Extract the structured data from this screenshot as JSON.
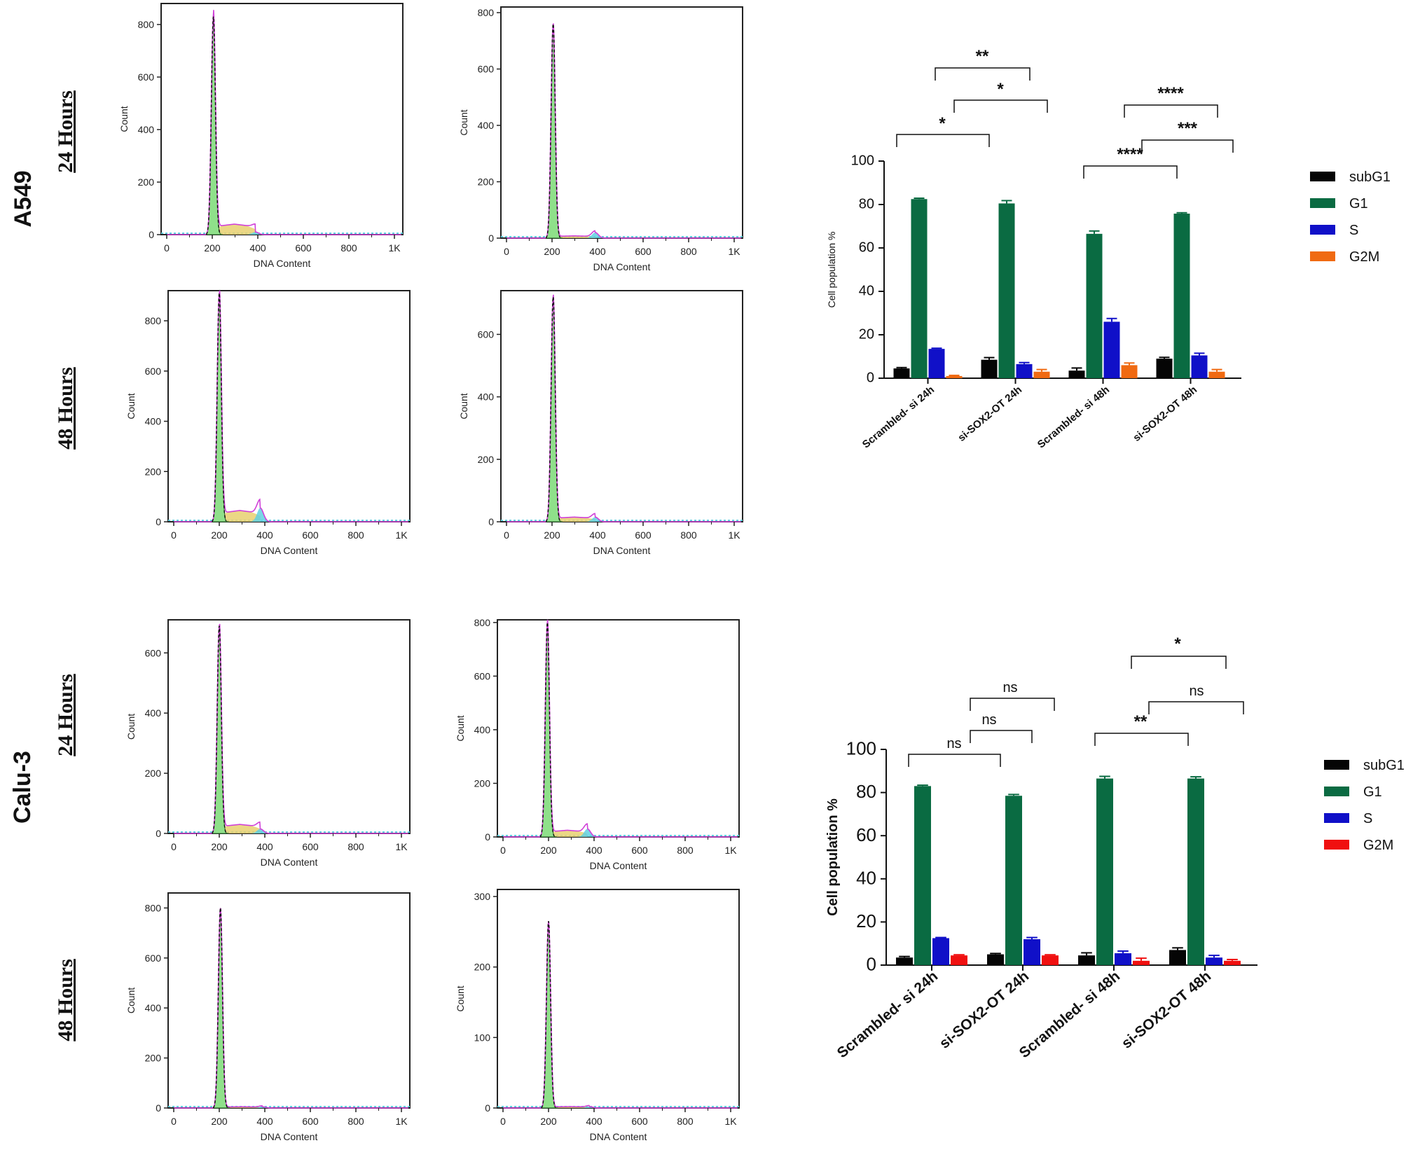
{
  "colors": {
    "subG1": "#050505",
    "G1": "#0a6b42",
    "S": "#1010c8",
    "G2M_A549": "#f06a12",
    "G2M_Calu3": "#f01010",
    "hist_fill": "#8fe08a",
    "hist_line": "#d040d8",
    "hist_yellow": "#e8d070",
    "hist_cyan": "#60d0e0"
  },
  "row_labels": {
    "a549": "A549",
    "calu3": "Calu-3",
    "h24": "24 Hours",
    "h48": "48 Hours"
  },
  "histograms": [
    {
      "id": "a549-24h-scr",
      "xlabel": "DNA Content",
      "ylabel": "Count",
      "xticks": [
        "0",
        "200",
        "400",
        "600",
        "800",
        "1K"
      ],
      "yticks": [
        "0",
        "200",
        "400",
        "600",
        "800"
      ],
      "ymax": 880,
      "peak": 830,
      "peak_x": 205,
      "s_level": 40,
      "g2_bump": 10
    },
    {
      "id": "a549-24h-si",
      "xlabel": "DNA Content",
      "ylabel": "Count",
      "xticks": [
        "0",
        "200",
        "400",
        "600",
        "800",
        "1K"
      ],
      "yticks": [
        "0",
        "200",
        "400",
        "600",
        "800"
      ],
      "ymax": 820,
      "peak": 760,
      "peak_x": 205,
      "s_level": 8,
      "g2_bump": 20
    },
    {
      "id": "a549-48h-scr",
      "xlabel": "DNA Content",
      "ylabel": "Count",
      "xticks": [
        "0",
        "200",
        "400",
        "600",
        "800",
        "1K"
      ],
      "yticks": [
        "0",
        "200",
        "400",
        "600",
        "800"
      ],
      "ymax": 920,
      "peak": 910,
      "peak_x": 200,
      "s_level": 45,
      "g2_bump": 55
    },
    {
      "id": "a549-48h-si",
      "xlabel": "DNA Content",
      "ylabel": "Count",
      "xticks": [
        "0",
        "200",
        "400",
        "600",
        "800",
        "1K"
      ],
      "yticks": [
        "0",
        "200",
        "400",
        "600"
      ],
      "ymax": 740,
      "peak": 720,
      "peak_x": 205,
      "s_level": 15,
      "g2_bump": 15
    },
    {
      "id": "calu3-24h-scr",
      "xlabel": "DNA Content",
      "ylabel": "Count",
      "xticks": [
        "0",
        "200",
        "400",
        "600",
        "800",
        "1K"
      ],
      "yticks": [
        "0",
        "200",
        "400",
        "600"
      ],
      "ymax": 710,
      "peak": 690,
      "peak_x": 200,
      "s_level": 30,
      "g2_bump": 15
    },
    {
      "id": "calu3-24h-si",
      "xlabel": "DNA Content",
      "ylabel": "Count",
      "xticks": [
        "0",
        "200",
        "400",
        "600",
        "800",
        "1K"
      ],
      "yticks": [
        "0",
        "200",
        "400",
        "600",
        "800"
      ],
      "ymax": 810,
      "peak": 800,
      "peak_x": 195,
      "s_level": 25,
      "g2_bump": 30
    },
    {
      "id": "calu3-48h-scr",
      "xlabel": "DNA Content",
      "ylabel": "Count",
      "xticks": [
        "0",
        "200",
        "400",
        "600",
        "800",
        "1K"
      ],
      "yticks": [
        "0",
        "200",
        "400",
        "600",
        "800"
      ],
      "ymax": 860,
      "peak": 800,
      "peak_x": 205,
      "s_level": 5,
      "g2_bump": 5
    },
    {
      "id": "calu3-48h-si",
      "xlabel": "DNA Content",
      "ylabel": "Count",
      "xticks": [
        "0",
        "200",
        "400",
        "600",
        "800",
        "1K"
      ],
      "yticks": [
        "0",
        "100",
        "200",
        "300"
      ],
      "ymax": 310,
      "peak": 265,
      "peak_x": 200,
      "s_level": 2,
      "g2_bump": 2
    }
  ],
  "chart_data": [
    {
      "type": "bar",
      "id": "a549-bar",
      "title": "",
      "xlabel": "",
      "ylabel": "Cell population %",
      "ylim": [
        0,
        100
      ],
      "yticks": [
        "0",
        "20",
        "40",
        "60",
        "80",
        "100"
      ],
      "categories": [
        "Scrambled- si 24h",
        "si-SOX2-OT 24h",
        "Scrambled- si 48h",
        "si-SOX2-OT 48h"
      ],
      "series": [
        {
          "name": "subG1",
          "values": [
            4.5,
            8.5,
            3.5,
            9.0
          ],
          "errors": [
            0.4,
            1.0,
            1.2,
            0.6
          ]
        },
        {
          "name": "G1",
          "values": [
            82.5,
            80.5,
            66.5,
            75.8
          ],
          "errors": [
            0.4,
            1.3,
            1.3,
            0.4
          ]
        },
        {
          "name": "S",
          "values": [
            13.5,
            6.5,
            26.0,
            10.5
          ],
          "errors": [
            0.3,
            0.7,
            1.5,
            1.0
          ]
        },
        {
          "name": "G2M",
          "values": [
            1.0,
            3.0,
            6.0,
            3.0
          ],
          "errors": [
            0.3,
            1.0,
            1.0,
            1.0
          ]
        }
      ],
      "legend": [
        "subG1",
        "G1",
        "S",
        "G2M"
      ],
      "annotations": [
        {
          "text": "**",
          "from": 0,
          "to": 1
        },
        {
          "text": "*",
          "from": 0,
          "to": 1
        },
        {
          "text": "*",
          "from": 0,
          "to": 1
        },
        {
          "text": "****",
          "from": 2,
          "to": 3
        },
        {
          "text": "***",
          "from": 2,
          "to": 3
        },
        {
          "text": "****",
          "from": 2,
          "to": 3
        }
      ]
    },
    {
      "type": "bar",
      "id": "calu3-bar",
      "title": "",
      "xlabel": "",
      "ylabel": "Cell population %",
      "ylim": [
        0,
        100
      ],
      "yticks": [
        "0",
        "20",
        "40",
        "60",
        "80",
        "100"
      ],
      "categories": [
        "Scrambled- si 24h",
        "si-SOX2-OT 24h",
        "Scrambled- si 48h",
        "si-SOX2-OT 48h"
      ],
      "series": [
        {
          "name": "subG1",
          "values": [
            3.5,
            5.0,
            4.5,
            7.0
          ],
          "errors": [
            0.5,
            0.4,
            1.2,
            1.0
          ]
        },
        {
          "name": "G1",
          "values": [
            83.0,
            78.5,
            86.5,
            86.5
          ],
          "errors": [
            0.4,
            0.6,
            1.0,
            0.8
          ]
        },
        {
          "name": "S",
          "values": [
            12.5,
            12.0,
            5.5,
            3.5
          ],
          "errors": [
            0.3,
            0.8,
            1.0,
            1.0
          ]
        },
        {
          "name": "G2M",
          "values": [
            4.5,
            4.5,
            2.0,
            2.0
          ],
          "errors": [
            0.3,
            0.3,
            1.2,
            0.6
          ]
        }
      ],
      "legend": [
        "subG1",
        "G1",
        "S",
        "G2M"
      ],
      "annotations": [
        {
          "text": "*",
          "from": 2,
          "to": 3
        },
        {
          "text": "ns",
          "from": 0,
          "to": 1
        },
        {
          "text": "ns",
          "from": 2,
          "to": 3
        },
        {
          "text": "ns",
          "from": 0,
          "to": 1
        },
        {
          "text": "ns",
          "from": 0,
          "to": 1
        },
        {
          "text": "**",
          "from": 2,
          "to": 3
        }
      ]
    }
  ]
}
